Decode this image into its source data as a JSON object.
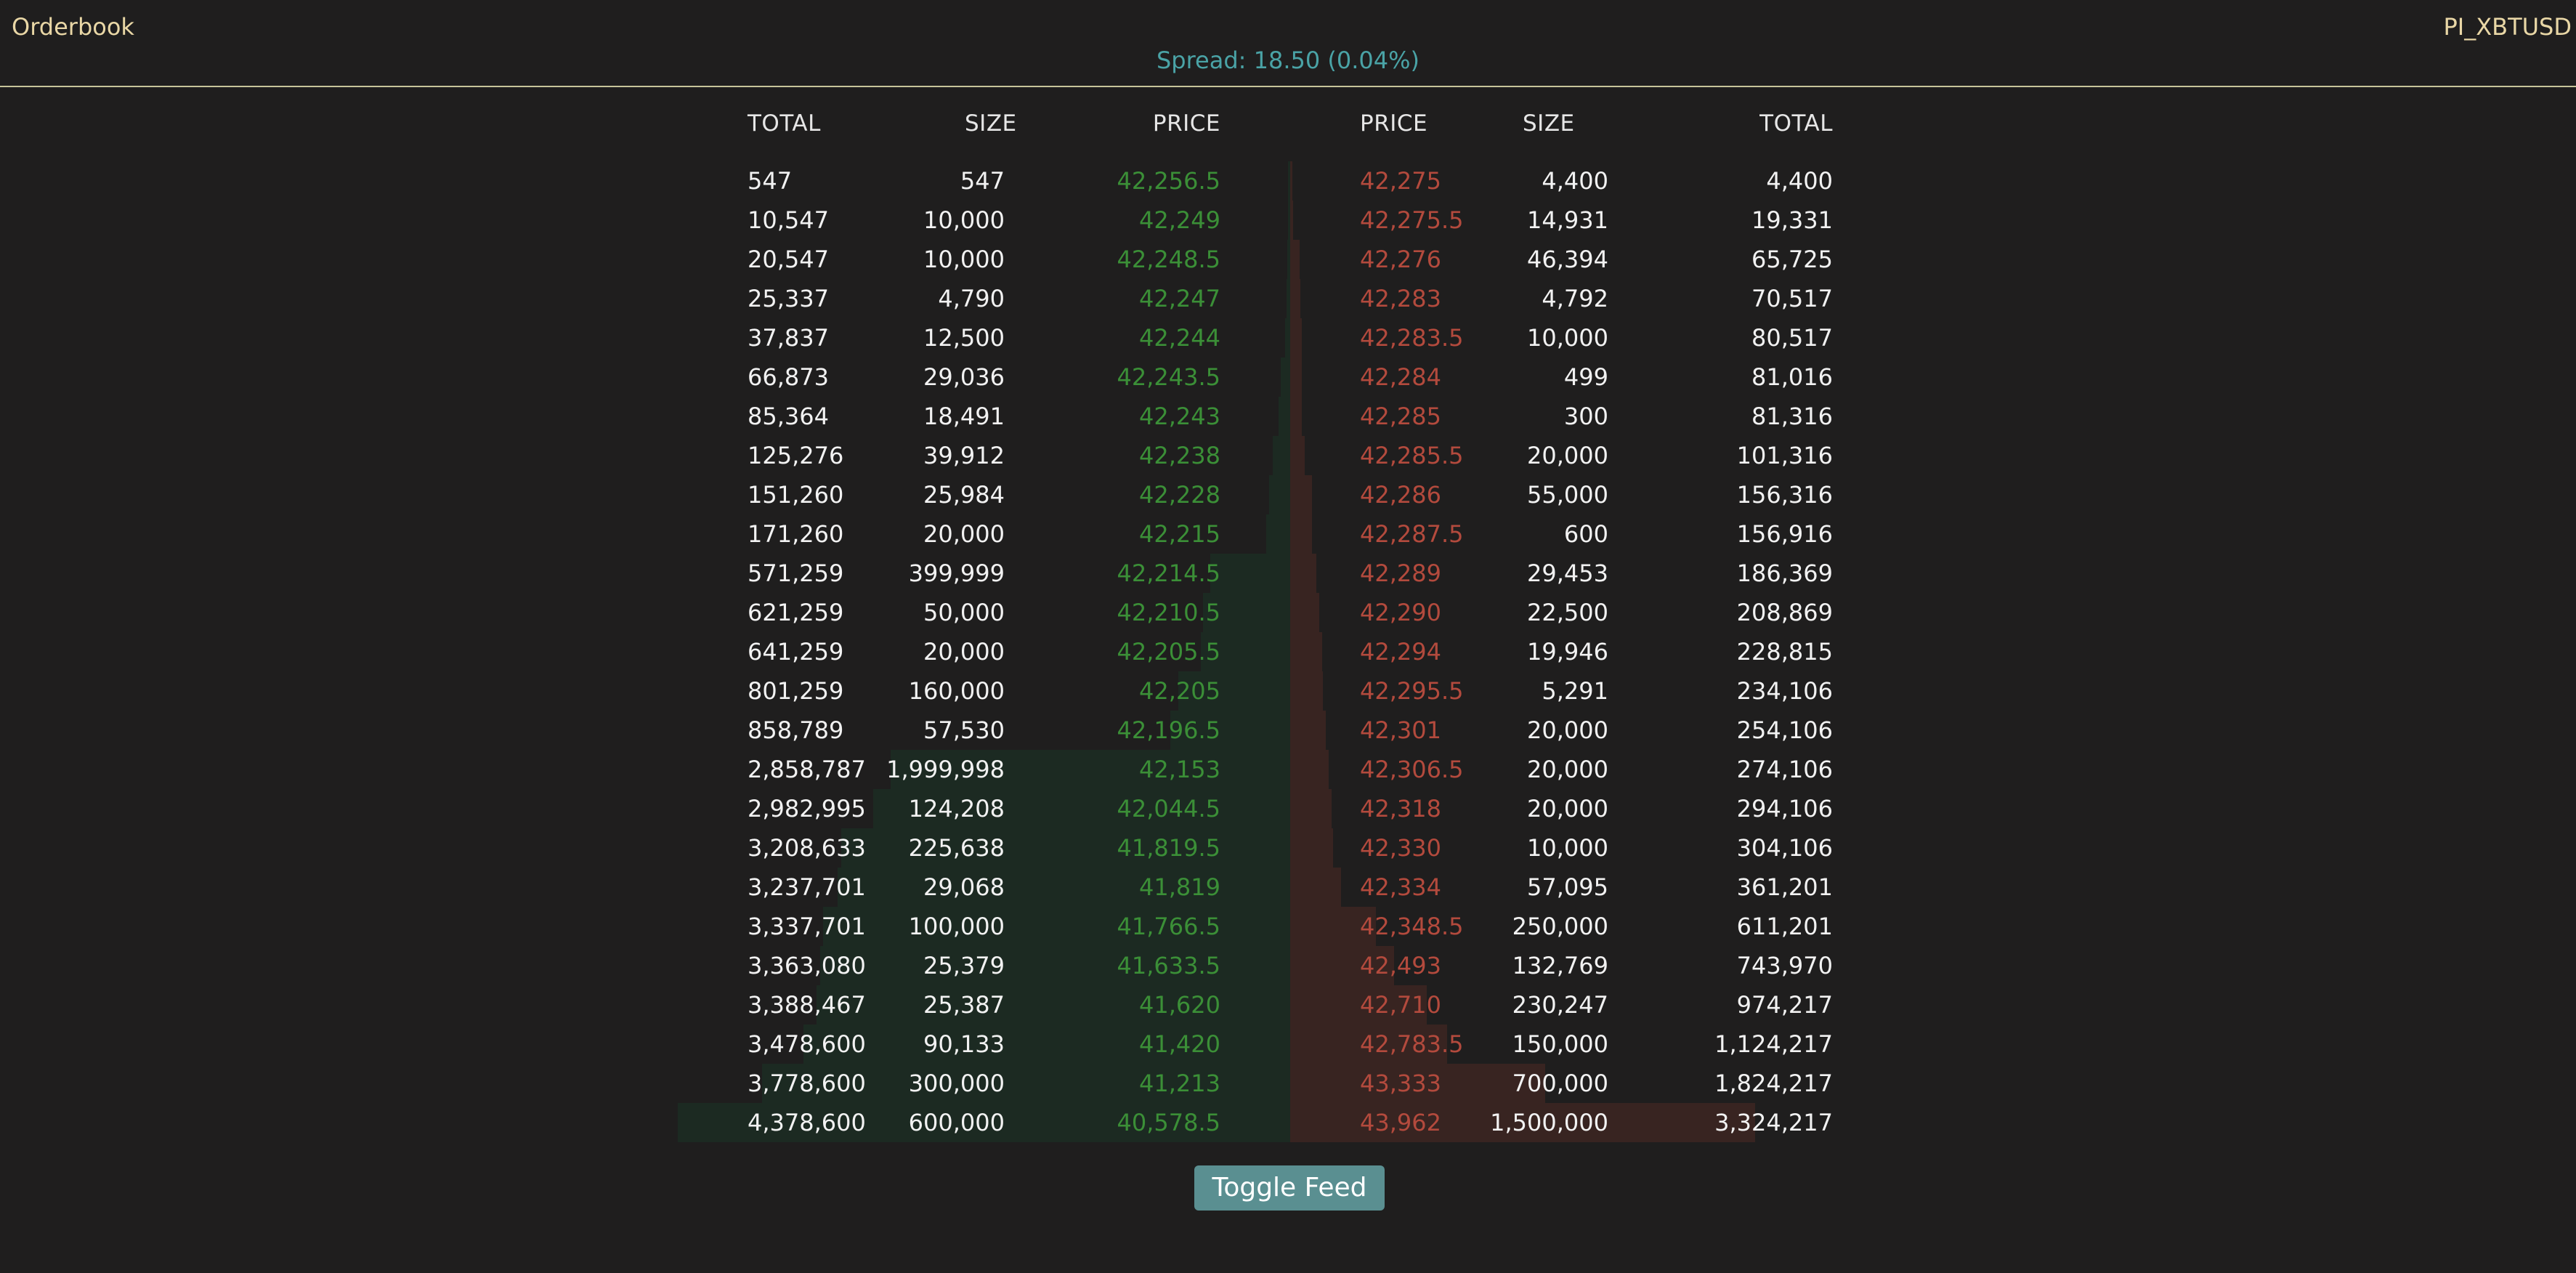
{
  "header": {
    "title": "Orderbook",
    "product_id": "PI_XBTUSD",
    "spread": "Spread: 18.50 (0.04%)"
  },
  "bids": {
    "headers": {
      "total": "TOTAL",
      "size": "SIZE",
      "price": "PRICE"
    },
    "max_total": 4378600,
    "rows": [
      {
        "total": "547",
        "size": "547",
        "price": "42,256.5",
        "total_value": 547
      },
      {
        "total": "10,547",
        "size": "10,000",
        "price": "42,249",
        "total_value": 10547
      },
      {
        "total": "20,547",
        "size": "10,000",
        "price": "42,248.5",
        "total_value": 20547
      },
      {
        "total": "25,337",
        "size": "4,790",
        "price": "42,247",
        "total_value": 25337
      },
      {
        "total": "37,837",
        "size": "12,500",
        "price": "42,244",
        "total_value": 37837
      },
      {
        "total": "66,873",
        "size": "29,036",
        "price": "42,243.5",
        "total_value": 66873
      },
      {
        "total": "85,364",
        "size": "18,491",
        "price": "42,243",
        "total_value": 85364
      },
      {
        "total": "125,276",
        "size": "39,912",
        "price": "42,238",
        "total_value": 125276
      },
      {
        "total": "151,260",
        "size": "25,984",
        "price": "42,228",
        "total_value": 151260
      },
      {
        "total": "171,260",
        "size": "20,000",
        "price": "42,215",
        "total_value": 171260
      },
      {
        "total": "571,259",
        "size": "399,999",
        "price": "42,214.5",
        "total_value": 571259
      },
      {
        "total": "621,259",
        "size": "50,000",
        "price": "42,210.5",
        "total_value": 621259
      },
      {
        "total": "641,259",
        "size": "20,000",
        "price": "42,205.5",
        "total_value": 641259
      },
      {
        "total": "801,259",
        "size": "160,000",
        "price": "42,205",
        "total_value": 801259
      },
      {
        "total": "858,789",
        "size": "57,530",
        "price": "42,196.5",
        "total_value": 858789
      },
      {
        "total": "2,858,787",
        "size": "1,999,998",
        "price": "42,153",
        "total_value": 2858787
      },
      {
        "total": "2,982,995",
        "size": "124,208",
        "price": "42,044.5",
        "total_value": 2982995
      },
      {
        "total": "3,208,633",
        "size": "225,638",
        "price": "41,819.5",
        "total_value": 3208633
      },
      {
        "total": "3,237,701",
        "size": "29,068",
        "price": "41,819",
        "total_value": 3237701
      },
      {
        "total": "3,337,701",
        "size": "100,000",
        "price": "41,766.5",
        "total_value": 3337701
      },
      {
        "total": "3,363,080",
        "size": "25,379",
        "price": "41,633.5",
        "total_value": 3363080
      },
      {
        "total": "3,388,467",
        "size": "25,387",
        "price": "41,620",
        "total_value": 3388467
      },
      {
        "total": "3,478,600",
        "size": "90,133",
        "price": "41,420",
        "total_value": 3478600
      },
      {
        "total": "3,778,600",
        "size": "300,000",
        "price": "41,213",
        "total_value": 3778600
      },
      {
        "total": "4,378,600",
        "size": "600,000",
        "price": "40,578.5",
        "total_value": 4378600
      }
    ]
  },
  "asks": {
    "headers": {
      "price": "PRICE",
      "size": "SIZE",
      "total": "TOTAL"
    },
    "max_total": 4378600,
    "rows": [
      {
        "price": "42,275",
        "size": "4,400",
        "total": "4,400",
        "total_value": 4400
      },
      {
        "price": "42,275.5",
        "size": "14,931",
        "total": "19,331",
        "total_value": 19331
      },
      {
        "price": "42,276",
        "size": "46,394",
        "total": "65,725",
        "total_value": 65725
      },
      {
        "price": "42,283",
        "size": "4,792",
        "total": "70,517",
        "total_value": 70517
      },
      {
        "price": "42,283.5",
        "size": "10,000",
        "total": "80,517",
        "total_value": 80517
      },
      {
        "price": "42,284",
        "size": "499",
        "total": "81,016",
        "total_value": 81016
      },
      {
        "price": "42,285",
        "size": "300",
        "total": "81,316",
        "total_value": 81316
      },
      {
        "price": "42,285.5",
        "size": "20,000",
        "total": "101,316",
        "total_value": 101316
      },
      {
        "price": "42,286",
        "size": "55,000",
        "total": "156,316",
        "total_value": 156316
      },
      {
        "price": "42,287.5",
        "size": "600",
        "total": "156,916",
        "total_value": 156916
      },
      {
        "price": "42,289",
        "size": "29,453",
        "total": "186,369",
        "total_value": 186369
      },
      {
        "price": "42,290",
        "size": "22,500",
        "total": "208,869",
        "total_value": 208869
      },
      {
        "price": "42,294",
        "size": "19,946",
        "total": "228,815",
        "total_value": 228815
      },
      {
        "price": "42,295.5",
        "size": "5,291",
        "total": "234,106",
        "total_value": 234106
      },
      {
        "price": "42,301",
        "size": "20,000",
        "total": "254,106",
        "total_value": 254106
      },
      {
        "price": "42,306.5",
        "size": "20,000",
        "total": "274,106",
        "total_value": 274106
      },
      {
        "price": "42,318",
        "size": "20,000",
        "total": "294,106",
        "total_value": 294106
      },
      {
        "price": "42,330",
        "size": "10,000",
        "total": "304,106",
        "total_value": 304106
      },
      {
        "price": "42,334",
        "size": "57,095",
        "total": "361,201",
        "total_value": 361201
      },
      {
        "price": "42,348.5",
        "size": "250,000",
        "total": "611,201",
        "total_value": 611201
      },
      {
        "price": "42,493",
        "size": "132,769",
        "total": "743,970",
        "total_value": 743970
      },
      {
        "price": "42,710",
        "size": "230,247",
        "total": "974,217",
        "total_value": 974217
      },
      {
        "price": "42,783.5",
        "size": "150,000",
        "total": "1,124,217",
        "total_value": 1124217
      },
      {
        "price": "43,333",
        "size": "700,000",
        "total": "1,824,217",
        "total_value": 1824217
      },
      {
        "price": "43,962",
        "size": "1,500,000",
        "total": "3,324,217",
        "total_value": 3324217
      }
    ]
  },
  "controls": {
    "toggle_label": "Toggle Feed"
  },
  "colors": {
    "bid_price": "#3b8f37",
    "ask_price": "#b34a3d",
    "bid_depth": "#1c2a22",
    "ask_depth": "#382421",
    "accent": "#5a8f91"
  }
}
